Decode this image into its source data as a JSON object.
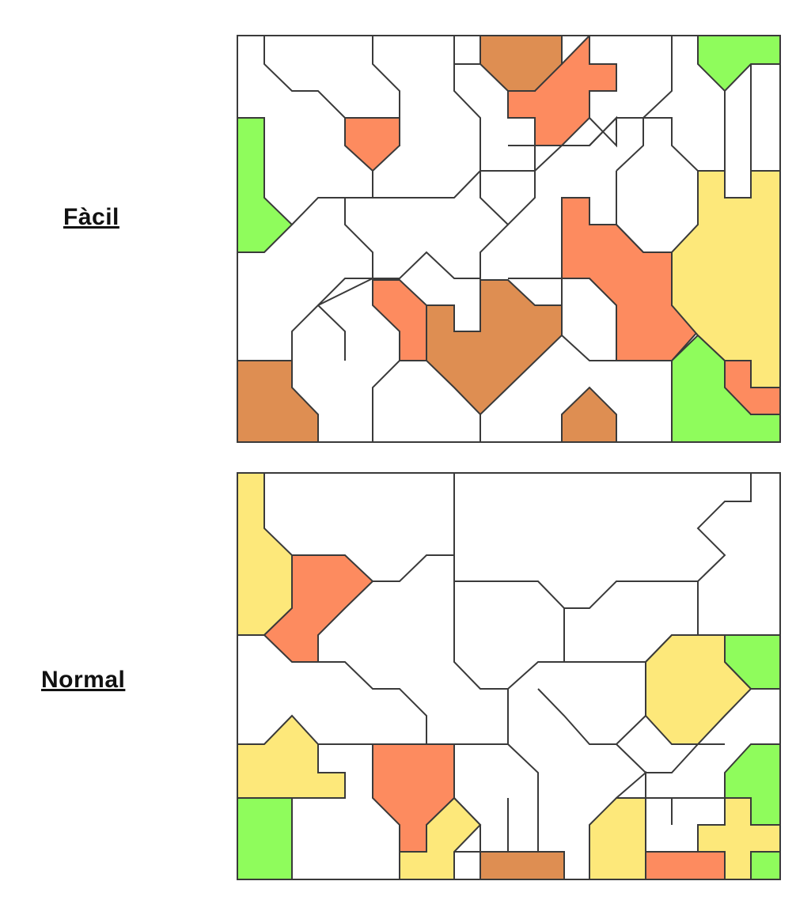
{
  "levels": [
    {
      "id": "easy",
      "label": "Fàcil"
    },
    {
      "id": "normal",
      "label": "Normal"
    }
  ],
  "colors": {
    "empty": "#ffffff",
    "green": "#8ffc5c",
    "yellow": "#fde87a",
    "salmon": "#fd8b5f",
    "brown": "#de8e52",
    "outline": "#3a3a3a"
  }
}
